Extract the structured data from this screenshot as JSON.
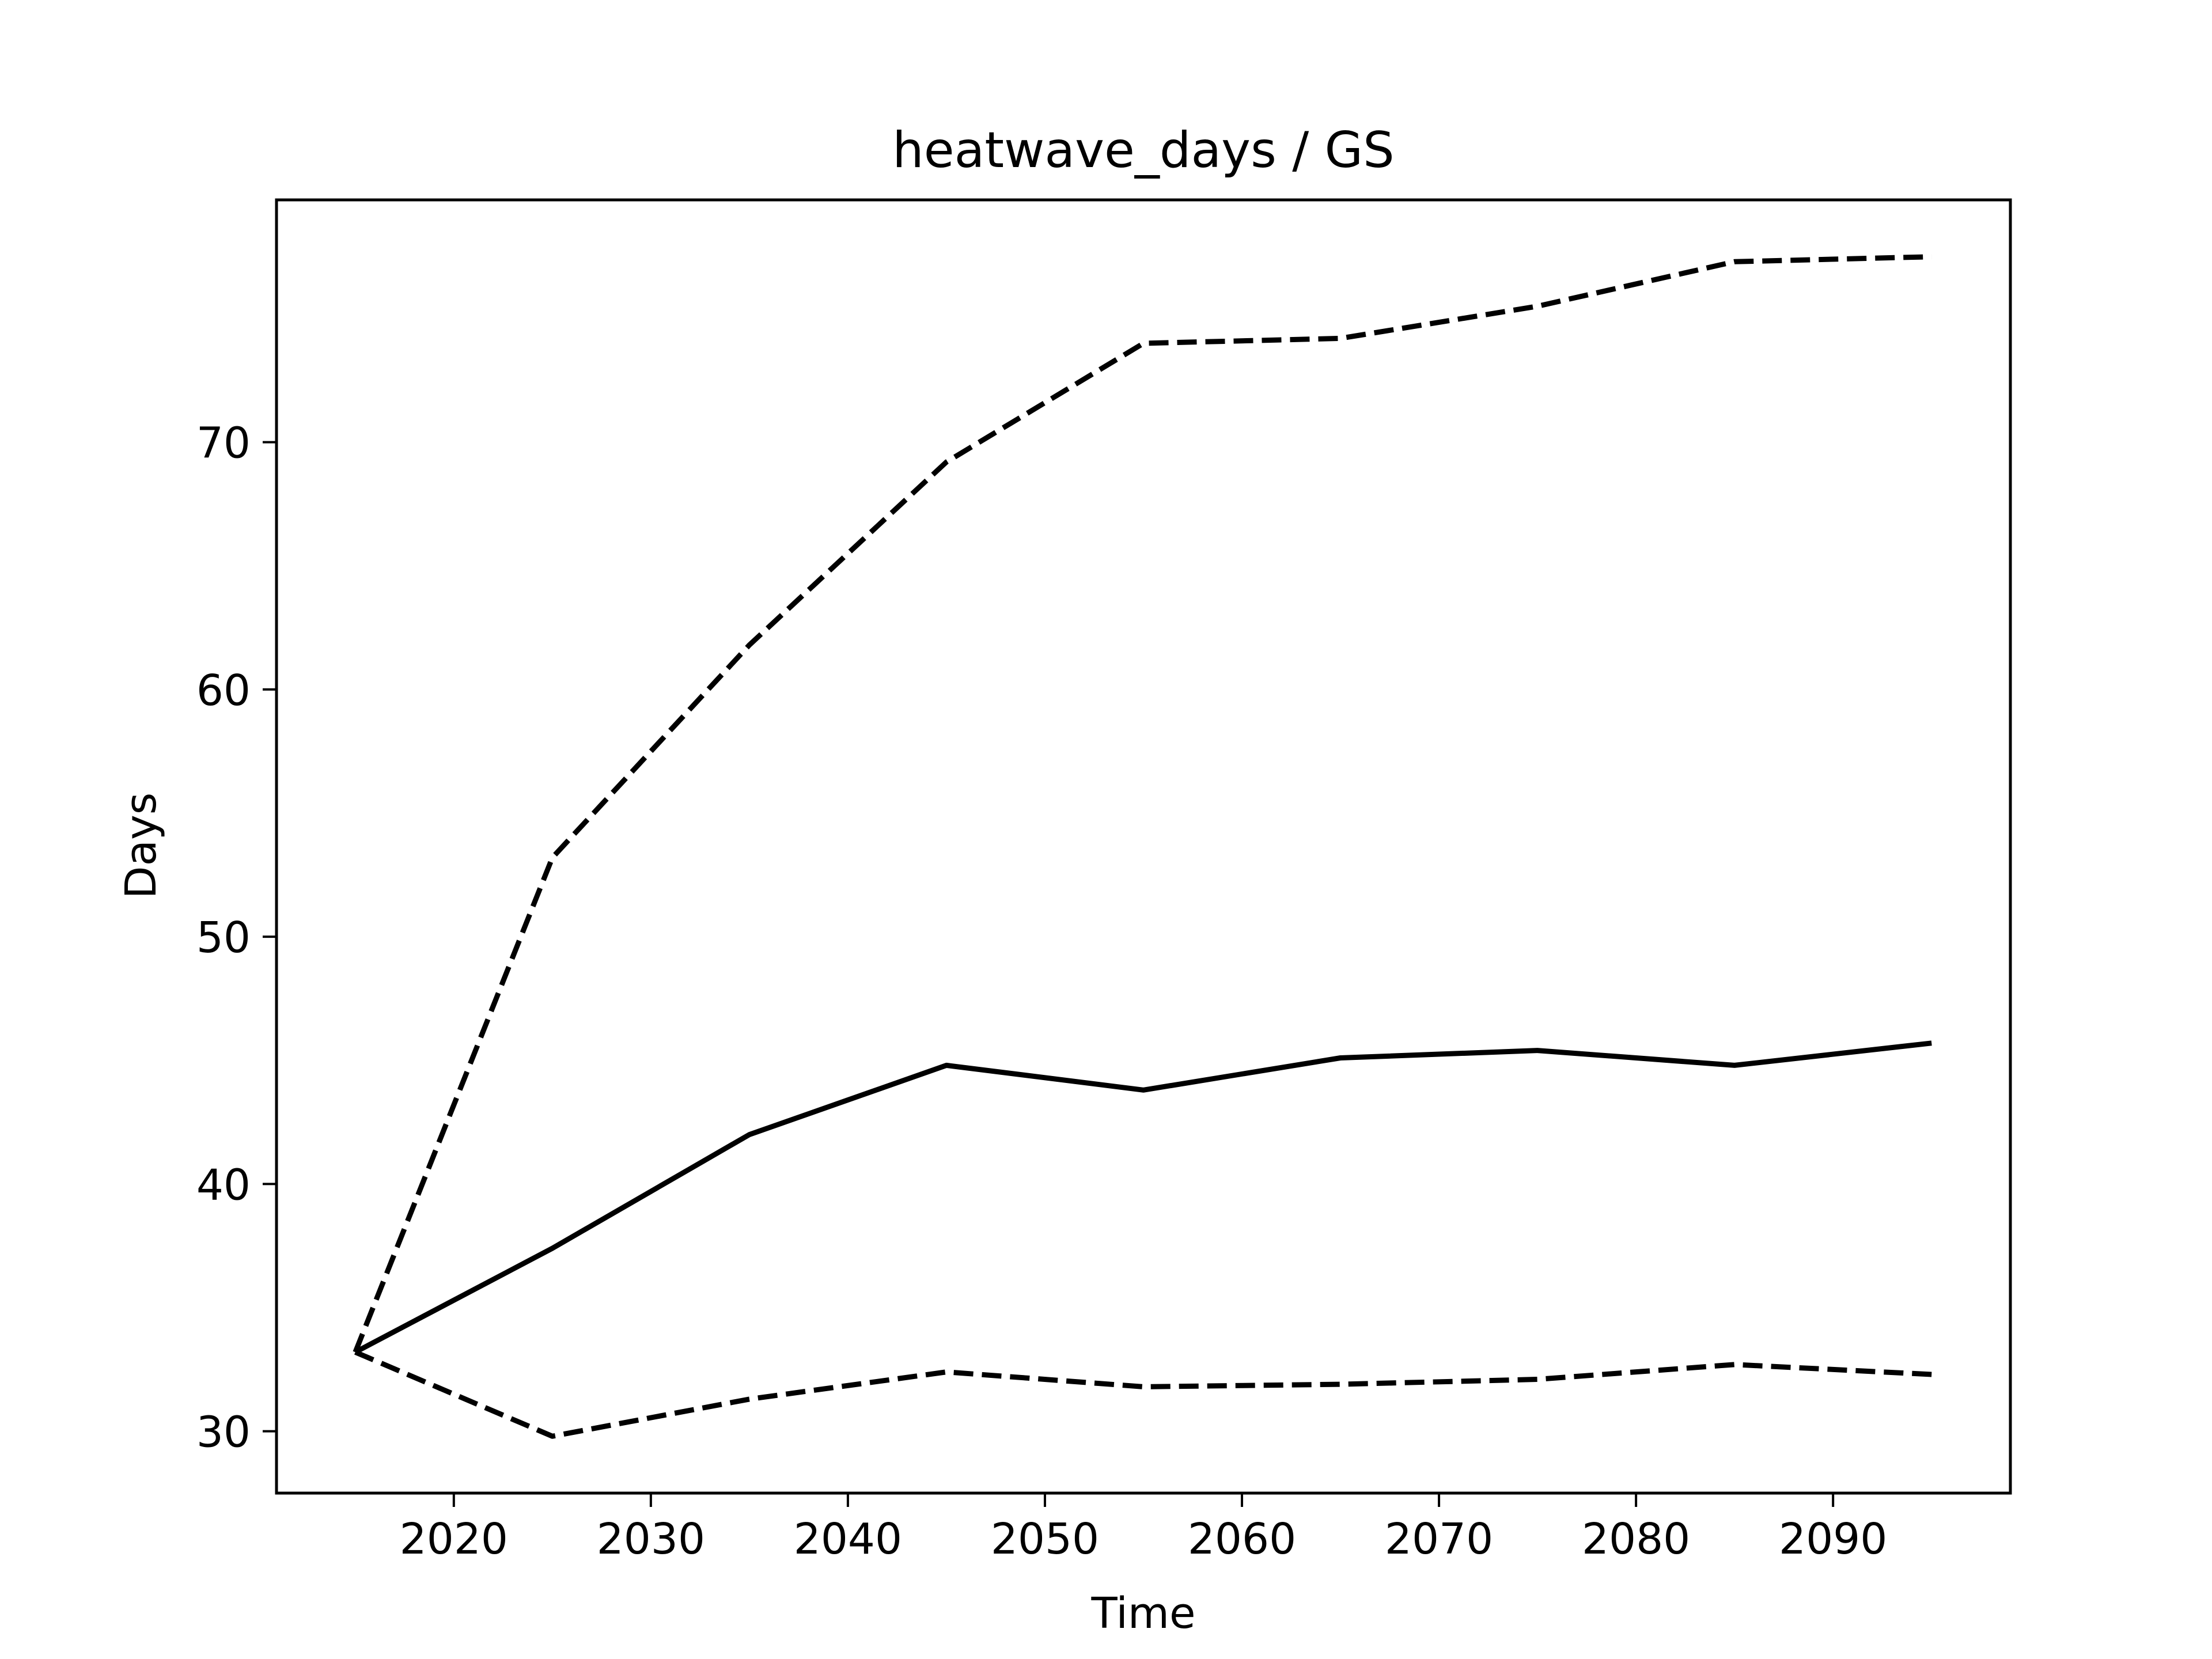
{
  "chart_data": {
    "type": "line",
    "title": "heatwave_days / GS",
    "xlabel": "Time",
    "ylabel": "Days",
    "xlim": [
      2011,
      2099
    ],
    "ylim": [
      27.5,
      79.8
    ],
    "x_ticks": [
      2020,
      2030,
      2040,
      2050,
      2060,
      2070,
      2080,
      2090
    ],
    "y_ticks": [
      30,
      40,
      50,
      60,
      70
    ],
    "grid": false,
    "legend": "none",
    "series": [
      {
        "style": "dashed",
        "color": "#000000",
        "x": [
          2015,
          2025,
          2035,
          2045,
          2055,
          2065,
          2075,
          2085,
          2095
        ],
        "y": [
          33.2,
          53.2,
          61.8,
          69.2,
          74.0,
          74.2,
          75.5,
          77.3,
          77.5
        ]
      },
      {
        "style": "solid",
        "color": "#000000",
        "x": [
          2015,
          2025,
          2035,
          2045,
          2055,
          2065,
          2075,
          2085,
          2095
        ],
        "y": [
          33.2,
          37.4,
          42.0,
          44.8,
          43.8,
          45.1,
          45.4,
          44.8,
          45.7
        ]
      },
      {
        "style": "dashed",
        "color": "#000000",
        "x": [
          2015,
          2025,
          2035,
          2045,
          2055,
          2065,
          2075,
          2085,
          2095
        ],
        "y": [
          33.2,
          29.8,
          31.3,
          32.4,
          31.8,
          31.9,
          32.1,
          32.7,
          32.3
        ]
      }
    ]
  }
}
